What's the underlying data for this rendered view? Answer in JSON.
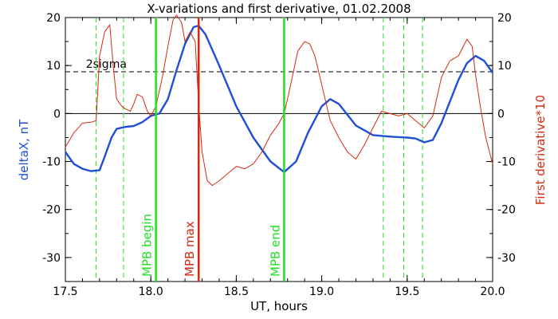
{
  "chart_data": {
    "type": "line",
    "title": "X-variations and first derivative, 01.02.2008",
    "xlabel": "UT, hours",
    "ylabel_left": "deltaX, nT",
    "ylabel_right": "First derivative*10",
    "xlim": [
      17.5,
      20.0
    ],
    "ylim": [
      -35,
      20
    ],
    "x_ticks": [
      "17.5",
      "18.0",
      "18.5",
      "19.0",
      "19.5",
      "20.0"
    ],
    "y_ticks": [
      "20",
      "10",
      "0",
      "-10",
      "-20",
      "-30"
    ],
    "sigma_label": "2sigma",
    "sigma_level": 8.7,
    "zero_level": 0,
    "series": [
      {
        "name": "deltaX, nT",
        "color": "#1f4fd6",
        "points": [
          [
            17.5,
            -8.0
          ],
          [
            17.55,
            -10.5
          ],
          [
            17.6,
            -11.5
          ],
          [
            17.65,
            -12.0
          ],
          [
            17.7,
            -11.8
          ],
          [
            17.73,
            -9.0
          ],
          [
            17.77,
            -5.0
          ],
          [
            17.8,
            -3.2
          ],
          [
            17.85,
            -2.8
          ],
          [
            17.9,
            -2.6
          ],
          [
            17.95,
            -1.8
          ],
          [
            18.0,
            -0.5
          ],
          [
            18.05,
            0.0
          ],
          [
            18.1,
            3.0
          ],
          [
            18.15,
            9.0
          ],
          [
            18.2,
            14.5
          ],
          [
            18.25,
            18.0
          ],
          [
            18.28,
            18.3
          ],
          [
            18.32,
            16.5
          ],
          [
            18.4,
            10.0
          ],
          [
            18.5,
            1.5
          ],
          [
            18.6,
            -5.0
          ],
          [
            18.7,
            -10.0
          ],
          [
            18.78,
            -12.2
          ],
          [
            18.85,
            -10.0
          ],
          [
            18.92,
            -4.0
          ],
          [
            19.0,
            1.5
          ],
          [
            19.05,
            3.0
          ],
          [
            19.1,
            2.0
          ],
          [
            19.2,
            -2.5
          ],
          [
            19.3,
            -4.5
          ],
          [
            19.4,
            -4.8
          ],
          [
            19.5,
            -5.0
          ],
          [
            19.55,
            -5.2
          ],
          [
            19.6,
            -6.0
          ],
          [
            19.65,
            -5.5
          ],
          [
            19.7,
            -2.0
          ],
          [
            19.75,
            2.5
          ],
          [
            19.8,
            7.0
          ],
          [
            19.85,
            10.5
          ],
          [
            19.9,
            12.0
          ],
          [
            19.95,
            11.0
          ],
          [
            20.0,
            8.5
          ]
        ]
      },
      {
        "name": "First derivative*10",
        "color": "#d42a10",
        "points": [
          [
            17.5,
            -7.0
          ],
          [
            17.55,
            -4.0
          ],
          [
            17.6,
            -2.0
          ],
          [
            17.65,
            -1.8
          ],
          [
            17.68,
            -1.5
          ],
          [
            17.7,
            12.0
          ],
          [
            17.73,
            17.0
          ],
          [
            17.76,
            18.5
          ],
          [
            17.78,
            10.0
          ],
          [
            17.8,
            3.0
          ],
          [
            17.83,
            1.5
          ],
          [
            17.85,
            1.0
          ],
          [
            17.88,
            0.5
          ],
          [
            17.9,
            2.0
          ],
          [
            17.92,
            4.0
          ],
          [
            17.95,
            3.5
          ],
          [
            17.98,
            0.5
          ],
          [
            18.0,
            -0.5
          ],
          [
            18.03,
            1.5
          ],
          [
            18.07,
            8.0
          ],
          [
            18.1,
            14.0
          ],
          [
            18.13,
            19.5
          ],
          [
            18.15,
            20.5
          ],
          [
            18.18,
            19.0
          ],
          [
            18.2,
            15.0
          ],
          [
            18.23,
            17.0
          ],
          [
            18.26,
            15.0
          ],
          [
            18.28,
            2.0
          ],
          [
            18.3,
            -8.0
          ],
          [
            18.33,
            -14.0
          ],
          [
            18.36,
            -15.0
          ],
          [
            18.4,
            -14.0
          ],
          [
            18.45,
            -12.5
          ],
          [
            18.5,
            -11.0
          ],
          [
            18.55,
            -11.5
          ],
          [
            18.6,
            -10.5
          ],
          [
            18.65,
            -8.0
          ],
          [
            18.7,
            -4.5
          ],
          [
            18.75,
            -2.0
          ],
          [
            18.78,
            0.0
          ],
          [
            18.8,
            3.0
          ],
          [
            18.83,
            8.0
          ],
          [
            18.86,
            13.0
          ],
          [
            18.9,
            15.0
          ],
          [
            18.93,
            14.5
          ],
          [
            18.96,
            12.0
          ],
          [
            19.0,
            6.0
          ],
          [
            19.05,
            -1.5
          ],
          [
            19.1,
            -5.0
          ],
          [
            19.15,
            -8.0
          ],
          [
            19.2,
            -9.5
          ],
          [
            19.25,
            -6.5
          ],
          [
            19.3,
            -3.0
          ],
          [
            19.35,
            0.5
          ],
          [
            19.4,
            0.0
          ],
          [
            19.45,
            -0.5
          ],
          [
            19.5,
            0.0
          ],
          [
            19.55,
            -1.5
          ],
          [
            19.6,
            -3.0
          ],
          [
            19.65,
            -0.5
          ],
          [
            19.7,
            7.5
          ],
          [
            19.75,
            11.0
          ],
          [
            19.8,
            12.0
          ],
          [
            19.85,
            15.5
          ],
          [
            19.88,
            14.0
          ],
          [
            19.9,
            8.0
          ],
          [
            19.93,
            1.0
          ],
          [
            19.96,
            -5.0
          ],
          [
            20.0,
            -10.5
          ]
        ]
      }
    ],
    "dashed_markers": [
      17.68,
      17.84,
      19.36,
      19.48,
      19.59
    ],
    "event_markers": [
      {
        "x": 18.03,
        "label": "MPB begin",
        "color": "#22e022"
      },
      {
        "x": 18.28,
        "label": "MPB max",
        "color": "#d42a10"
      },
      {
        "x": 18.78,
        "label": "MPB end",
        "color": "#22e022"
      }
    ],
    "grid": false,
    "legend": "none"
  }
}
